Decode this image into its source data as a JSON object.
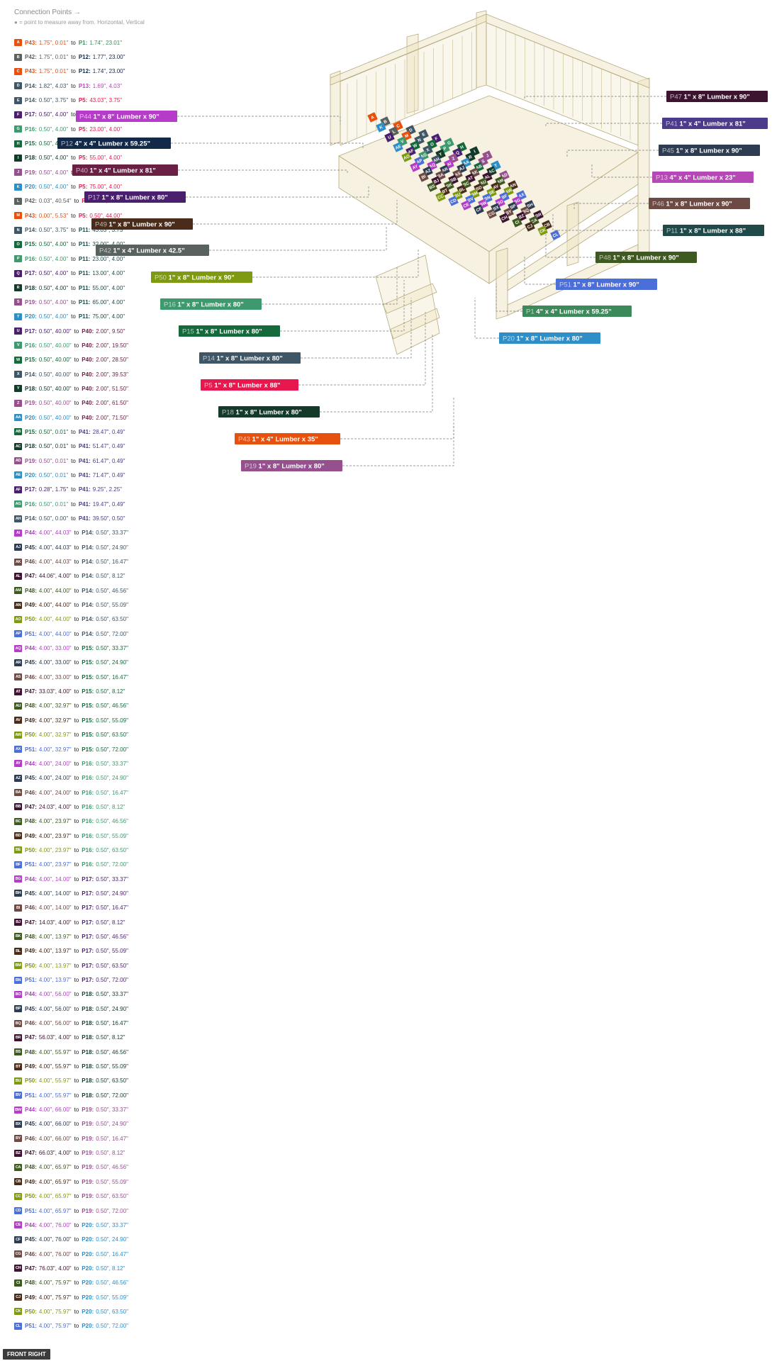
{
  "header": {
    "title": "Connection Points →",
    "note": "● = point to measure away from. Horizontal, Vertical"
  },
  "colors": {
    "P1": "#3c8a5a",
    "P5": "#e8184e",
    "P11": "#1f4a4a",
    "P12": "#13294a",
    "P13": "#b548b5",
    "P14": "#3e5666",
    "P15": "#146a3a",
    "P16": "#3e9a6e",
    "P17": "#4a1f6e",
    "P18": "#143a2a",
    "P19": "#96508e",
    "P20": "#2e8ec8",
    "P40": "#6a1f44",
    "P41": "#4c3a8a",
    "P42": "#5a6260",
    "P43": "#e8500e",
    "P44": "#b43cc8",
    "P45": "#2e3c52",
    "P46": "#6e4a44",
    "P47": "#3c1430",
    "P48": "#3e5a20",
    "P49": "#4a2c1a",
    "P50": "#7e9a10",
    "P51": "#4c6ed8"
  },
  "connections": [
    {
      "id": "A",
      "a": "P43",
      "av": "1.75\", 0.01\"",
      "b": "P1",
      "bv": "1.74\", 23.01\""
    },
    {
      "id": "B",
      "a": "P42",
      "av": "1.75\", 0.01\"",
      "b": "P12",
      "bv": "1.77\", 23.00\""
    },
    {
      "id": "C",
      "a": "P43",
      "av": "1.75\", 0.01\"",
      "b": "P12",
      "bv": "1.74\", 23.00\""
    },
    {
      "id": "D",
      "a": "P14",
      "av": "1.82\", 4.03\"",
      "b": "P13",
      "bv": "1.69\", 4.03\""
    },
    {
      "id": "E",
      "a": "P14",
      "av": "0.50\", 3.75\"",
      "b": "P5",
      "bv": "43.03\", 3.75\""
    },
    {
      "id": "F",
      "a": "P17",
      "av": "0.50\", 4.00\"",
      "b": "P5",
      "bv": "13.00\", 4.00\""
    },
    {
      "id": "G",
      "a": "P16",
      "av": "0.50\", 4.00\"",
      "b": "P5",
      "bv": "23.00\", 4.00\""
    },
    {
      "id": "H",
      "a": "P15",
      "av": "0.50\", 4.00\"",
      "b": "P5",
      "bv": "32.00\", 4.00\""
    },
    {
      "id": "I",
      "a": "P18",
      "av": "0.50\", 4.00\"",
      "b": "P5",
      "bv": "55.00\", 4.00\""
    },
    {
      "id": "J",
      "a": "P19",
      "av": "0.50\", 4.00\"",
      "b": "P5",
      "bv": "65.00\", 4.00\""
    },
    {
      "id": "K",
      "a": "P20",
      "av": "0.50\", 4.00\"",
      "b": "P5",
      "bv": "75.00\", 4.00\""
    },
    {
      "id": "L",
      "a": "P42",
      "av": "0.03\", 40.54\"",
      "b": "P5",
      "bv": "0.50\", 44.00\""
    },
    {
      "id": "M",
      "a": "P43",
      "av": "0.00\", 5.53\"",
      "b": "P5",
      "bv": "0.50\", 44.00\""
    },
    {
      "id": "N",
      "a": "P14",
      "av": "0.50\", 3.75\"",
      "b": "P11",
      "bv": "43.03\", 3.75\""
    },
    {
      "id": "O",
      "a": "P15",
      "av": "0.50\", 4.00\"",
      "b": "P11",
      "bv": "32.00\", 4.00\""
    },
    {
      "id": "P",
      "a": "P16",
      "av": "0.50\", 4.00\"",
      "b": "P11",
      "bv": "23.00\", 4.00\""
    },
    {
      "id": "Q",
      "a": "P17",
      "av": "0.50\", 4.00\"",
      "b": "P11",
      "bv": "13.00\", 4.00\""
    },
    {
      "id": "R",
      "a": "P18",
      "av": "0.50\", 4.00\"",
      "b": "P11",
      "bv": "55.00\", 4.00\""
    },
    {
      "id": "S",
      "a": "P19",
      "av": "0.50\", 4.00\"",
      "b": "P11",
      "bv": "65.00\", 4.00\""
    },
    {
      "id": "T",
      "a": "P20",
      "av": "0.50\", 4.00\"",
      "b": "P11",
      "bv": "75.00\", 4.00\""
    },
    {
      "id": "U",
      "a": "P17",
      "av": "0.50\", 40.00\"",
      "b": "P40",
      "bv": "2.00\", 9.50\""
    },
    {
      "id": "V",
      "a": "P16",
      "av": "0.50\", 40.00\"",
      "b": "P40",
      "bv": "2.00\", 19.50\""
    },
    {
      "id": "W",
      "a": "P15",
      "av": "0.50\", 40.00\"",
      "b": "P40",
      "bv": "2.00\", 28.50\""
    },
    {
      "id": "X",
      "a": "P14",
      "av": "0.50\", 40.00\"",
      "b": "P40",
      "bv": "2.00\", 39.53\""
    },
    {
      "id": "Y",
      "a": "P18",
      "av": "0.50\", 40.00\"",
      "b": "P40",
      "bv": "2.00\", 51.50\""
    },
    {
      "id": "Z",
      "a": "P19",
      "av": "0.50\", 40.00\"",
      "b": "P40",
      "bv": "2.00\", 61.50\""
    },
    {
      "id": "AA",
      "a": "P20",
      "av": "0.50\", 40.00\"",
      "b": "P40",
      "bv": "2.00\", 71.50\""
    },
    {
      "id": "AB",
      "a": "P15",
      "av": "0.50\", 0.01\"",
      "b": "P41",
      "bv": "28.47\", 0.49\""
    },
    {
      "id": "AC",
      "a": "P18",
      "av": "0.50\", 0.01\"",
      "b": "P41",
      "bv": "51.47\", 0.49\""
    },
    {
      "id": "AD",
      "a": "P19",
      "av": "0.50\", 0.01\"",
      "b": "P41",
      "bv": "61.47\", 0.49\""
    },
    {
      "id": "AE",
      "a": "P20",
      "av": "0.50\", 0.01\"",
      "b": "P41",
      "bv": "71.47\", 0.49\""
    },
    {
      "id": "AF",
      "a": "P17",
      "av": "0.28\", 1.75\"",
      "b": "P41",
      "bv": "9.25\", 2.25\""
    },
    {
      "id": "AG",
      "a": "P16",
      "av": "0.50\", 0.01\"",
      "b": "P41",
      "bv": "19.47\", 0.49\""
    },
    {
      "id": "AH",
      "a": "P14",
      "av": "0.50\", 0.00\"",
      "b": "P41",
      "bv": "39.50\", 0.50\""
    },
    {
      "id": "AI",
      "a": "P44",
      "av": "4.00\", 44.03\"",
      "b": "P14",
      "bv": "0.50\", 33.37\""
    },
    {
      "id": "AJ",
      "a": "P45",
      "av": "4.00\", 44.03\"",
      "b": "P14",
      "bv": "0.50\", 24.90\""
    },
    {
      "id": "AK",
      "a": "P46",
      "av": "4.00\", 44.03\"",
      "b": "P14",
      "bv": "0.50\", 16.47\""
    },
    {
      "id": "AL",
      "a": "P47",
      "av": "44.06\", 4.00\"",
      "b": "P14",
      "bv": "0.50\", 8.12\""
    },
    {
      "id": "AM",
      "a": "P48",
      "av": "4.00\", 44.00\"",
      "b": "P14",
      "bv": "0.50\", 46.56\""
    },
    {
      "id": "AN",
      "a": "P49",
      "av": "4.00\", 44.00\"",
      "b": "P14",
      "bv": "0.50\", 55.09\""
    },
    {
      "id": "AO",
      "a": "P50",
      "av": "4.00\", 44.00\"",
      "b": "P14",
      "bv": "0.50\", 63.50\""
    },
    {
      "id": "AP",
      "a": "P51",
      "av": "4.00\", 44.00\"",
      "b": "P14",
      "bv": "0.50\", 72.00\""
    },
    {
      "id": "AQ",
      "a": "P44",
      "av": "4.00\", 33.00\"",
      "b": "P15",
      "bv": "0.50\", 33.37\""
    },
    {
      "id": "AR",
      "a": "P45",
      "av": "4.00\", 33.00\"",
      "b": "P15",
      "bv": "0.50\", 24.90\""
    },
    {
      "id": "AS",
      "a": "P46",
      "av": "4.00\", 33.00\"",
      "b": "P15",
      "bv": "0.50\", 16.47\""
    },
    {
      "id": "AT",
      "a": "P47",
      "av": "33.03\", 4.00\"",
      "b": "P15",
      "bv": "0.50\", 8.12\""
    },
    {
      "id": "AU",
      "a": "P48",
      "av": "4.00\", 32.97\"",
      "b": "P15",
      "bv": "0.50\", 46.56\""
    },
    {
      "id": "AV",
      "a": "P49",
      "av": "4.00\", 32.97\"",
      "b": "P15",
      "bv": "0.50\", 55.09\""
    },
    {
      "id": "AW",
      "a": "P50",
      "av": "4.00\", 32.97\"",
      "b": "P15",
      "bv": "0.50\", 63.50\""
    },
    {
      "id": "AX",
      "a": "P51",
      "av": "4.00\", 32.97\"",
      "b": "P15",
      "bv": "0.50\", 72.00\""
    },
    {
      "id": "AY",
      "a": "P44",
      "av": "4.00\", 24.00\"",
      "b": "P16",
      "bv": "0.50\", 33.37\""
    },
    {
      "id": "AZ",
      "a": "P45",
      "av": "4.00\", 24.00\"",
      "b": "P16",
      "bv": "0.50\", 24.90\""
    },
    {
      "id": "BA",
      "a": "P46",
      "av": "4.00\", 24.00\"",
      "b": "P16",
      "bv": "0.50\", 16.47\""
    },
    {
      "id": "BB",
      "a": "P47",
      "av": "24.03\", 4.00\"",
      "b": "P16",
      "bv": "0.50\", 8.12\""
    },
    {
      "id": "BC",
      "a": "P48",
      "av": "4.00\", 23.97\"",
      "b": "P16",
      "bv": "0.50\", 46.56\""
    },
    {
      "id": "BD",
      "a": "P49",
      "av": "4.00\", 23.97\"",
      "b": "P16",
      "bv": "0.50\", 55.09\""
    },
    {
      "id": "BE",
      "a": "P50",
      "av": "4.00\", 23.97\"",
      "b": "P16",
      "bv": "0.50\", 63.50\""
    },
    {
      "id": "BF",
      "a": "P51",
      "av": "4.00\", 23.97\"",
      "b": "P16",
      "bv": "0.50\", 72.00\""
    },
    {
      "id": "BG",
      "a": "P44",
      "av": "4.00\", 14.00\"",
      "b": "P17",
      "bv": "0.50\", 33.37\""
    },
    {
      "id": "BH",
      "a": "P45",
      "av": "4.00\", 14.00\"",
      "b": "P17",
      "bv": "0.50\", 24.90\""
    },
    {
      "id": "BI",
      "a": "P46",
      "av": "4.00\", 14.00\"",
      "b": "P17",
      "bv": "0.50\", 16.47\""
    },
    {
      "id": "BJ",
      "a": "P47",
      "av": "14.03\", 4.00\"",
      "b": "P17",
      "bv": "0.50\", 8.12\""
    },
    {
      "id": "BK",
      "a": "P48",
      "av": "4.00\", 13.97\"",
      "b": "P17",
      "bv": "0.50\", 46.56\""
    },
    {
      "id": "BL",
      "a": "P49",
      "av": "4.00\", 13.97\"",
      "b": "P17",
      "bv": "0.50\", 55.09\""
    },
    {
      "id": "BM",
      "a": "P50",
      "av": "4.00\", 13.97\"",
      "b": "P17",
      "bv": "0.50\", 63.50\""
    },
    {
      "id": "BN",
      "a": "P51",
      "av": "4.00\", 13.97\"",
      "b": "P17",
      "bv": "0.50\", 72.00\""
    },
    {
      "id": "BO",
      "a": "P44",
      "av": "4.00\", 56.00\"",
      "b": "P18",
      "bv": "0.50\", 33.37\""
    },
    {
      "id": "BP",
      "a": "P45",
      "av": "4.00\", 56.00\"",
      "b": "P18",
      "bv": "0.50\", 24.90\""
    },
    {
      "id": "BQ",
      "a": "P46",
      "av": "4.00\", 56.00\"",
      "b": "P18",
      "bv": "0.50\", 16.47\""
    },
    {
      "id": "BR",
      "a": "P47",
      "av": "56.03\", 4.00\"",
      "b": "P18",
      "bv": "0.50\", 8.12\""
    },
    {
      "id": "BS",
      "a": "P48",
      "av": "4.00\", 55.97\"",
      "b": "P18",
      "bv": "0.50\", 46.56\""
    },
    {
      "id": "BT",
      "a": "P49",
      "av": "4.00\", 55.97\"",
      "b": "P18",
      "bv": "0.50\", 55.09\""
    },
    {
      "id": "BU",
      "a": "P50",
      "av": "4.00\", 55.97\"",
      "b": "P18",
      "bv": "0.50\", 63.50\""
    },
    {
      "id": "BV",
      "a": "P51",
      "av": "4.00\", 55.97\"",
      "b": "P18",
      "bv": "0.50\", 72.00\""
    },
    {
      "id": "BW",
      "a": "P44",
      "av": "4.00\", 66.00\"",
      "b": "P19",
      "bv": "0.50\", 33.37\""
    },
    {
      "id": "BX",
      "a": "P45",
      "av": "4.00\", 66.00\"",
      "b": "P19",
      "bv": "0.50\", 24.90\""
    },
    {
      "id": "BY",
      "a": "P46",
      "av": "4.00\", 66.00\"",
      "b": "P19",
      "bv": "0.50\", 16.47\""
    },
    {
      "id": "BZ",
      "a": "P47",
      "av": "66.03\", 4.00\"",
      "b": "P19",
      "bv": "0.50\", 8.12\""
    },
    {
      "id": "CA",
      "a": "P48",
      "av": "4.00\", 65.97\"",
      "b": "P19",
      "bv": "0.50\", 46.56\""
    },
    {
      "id": "CB",
      "a": "P49",
      "av": "4.00\", 65.97\"",
      "b": "P19",
      "bv": "0.50\", 55.09\""
    },
    {
      "id": "CC",
      "a": "P50",
      "av": "4.00\", 65.97\"",
      "b": "P19",
      "bv": "0.50\", 63.50\""
    },
    {
      "id": "CD",
      "a": "P51",
      "av": "4.00\", 65.97\"",
      "b": "P19",
      "bv": "0.50\", 72.00\""
    },
    {
      "id": "CE",
      "a": "P44",
      "av": "4.00\", 76.00\"",
      "b": "P20",
      "bv": "0.50\", 33.37\""
    },
    {
      "id": "CF",
      "a": "P45",
      "av": "4.00\", 76.00\"",
      "b": "P20",
      "bv": "0.50\", 24.90\""
    },
    {
      "id": "CG",
      "a": "P46",
      "av": "4.00\", 76.00\"",
      "b": "P20",
      "bv": "0.50\", 16.47\""
    },
    {
      "id": "CH",
      "a": "P47",
      "av": "76.03\", 4.00\"",
      "b": "P20",
      "bv": "0.50\", 8.12\""
    },
    {
      "id": "CI",
      "a": "P48",
      "av": "4.00\", 75.97\"",
      "b": "P20",
      "bv": "0.50\", 46.56\""
    },
    {
      "id": "CJ",
      "a": "P49",
      "av": "4.00\", 75.97\"",
      "b": "P20",
      "bv": "0.50\", 55.09\""
    },
    {
      "id": "CK",
      "a": "P50",
      "av": "4.00\", 75.97\"",
      "b": "P20",
      "bv": "0.50\", 63.50\""
    },
    {
      "id": "CL",
      "a": "P51",
      "av": "4.00\", 75.97\"",
      "b": "P20",
      "bv": "0.50\", 72.00\""
    }
  ],
  "parts": [
    {
      "id": "P47",
      "desc": "1\" x 8\" Lumber x 90\""
    },
    {
      "id": "P44",
      "desc": "1\" x 8\" Lumber x 90\""
    },
    {
      "id": "P41",
      "desc": "1\" x 4\" Lumber  x 81\""
    },
    {
      "id": "P12",
      "desc": "4\" x 4\" Lumber x 59.25\""
    },
    {
      "id": "P45",
      "desc": "1\" x 8\" Lumber x 90\""
    },
    {
      "id": "P40",
      "desc": "1\" x 4\" Lumber  x 81\""
    },
    {
      "id": "P13",
      "desc": "4\" x 4\" Lumber x 23\""
    },
    {
      "id": "P17",
      "desc": "1\" x 8\" Lumber x 80\""
    },
    {
      "id": "P46",
      "desc": "1\" x 8\" Lumber x 90\""
    },
    {
      "id": "P49",
      "desc": "1\" x 8\" Lumber x 90\""
    },
    {
      "id": "P11",
      "desc": "1\" x 8\" Lumber x 88\""
    },
    {
      "id": "P42",
      "desc": "1\" x 4\" Lumber  x 42.5\""
    },
    {
      "id": "P48",
      "desc": "1\" x 8\" Lumber x 90\""
    },
    {
      "id": "P50",
      "desc": "1\" x 8\" Lumber x 90\""
    },
    {
      "id": "P51",
      "desc": "1\" x 8\" Lumber x 90\""
    },
    {
      "id": "P16",
      "desc": "1\" x 8\" Lumber x 80\""
    },
    {
      "id": "P1",
      "desc": "4\" x 4\" Lumber x 59.25\""
    },
    {
      "id": "P15",
      "desc": "1\" x 8\" Lumber x 80\""
    },
    {
      "id": "P20",
      "desc": "1\" x 8\" Lumber x 80\""
    },
    {
      "id": "P14",
      "desc": "1\" x 8\" Lumber x 80\""
    },
    {
      "id": "P5",
      "desc": "1\" x 8\" Lumber x 88\""
    },
    {
      "id": "P18",
      "desc": "1\" x 8\" Lumber x 80\""
    },
    {
      "id": "P43",
      "desc": "1\" x 4\" Lumber  x 35\""
    },
    {
      "id": "P19",
      "desc": "1\" x 8\" Lumber x 80\""
    }
  ],
  "view_label": "FRONT RIGHT"
}
